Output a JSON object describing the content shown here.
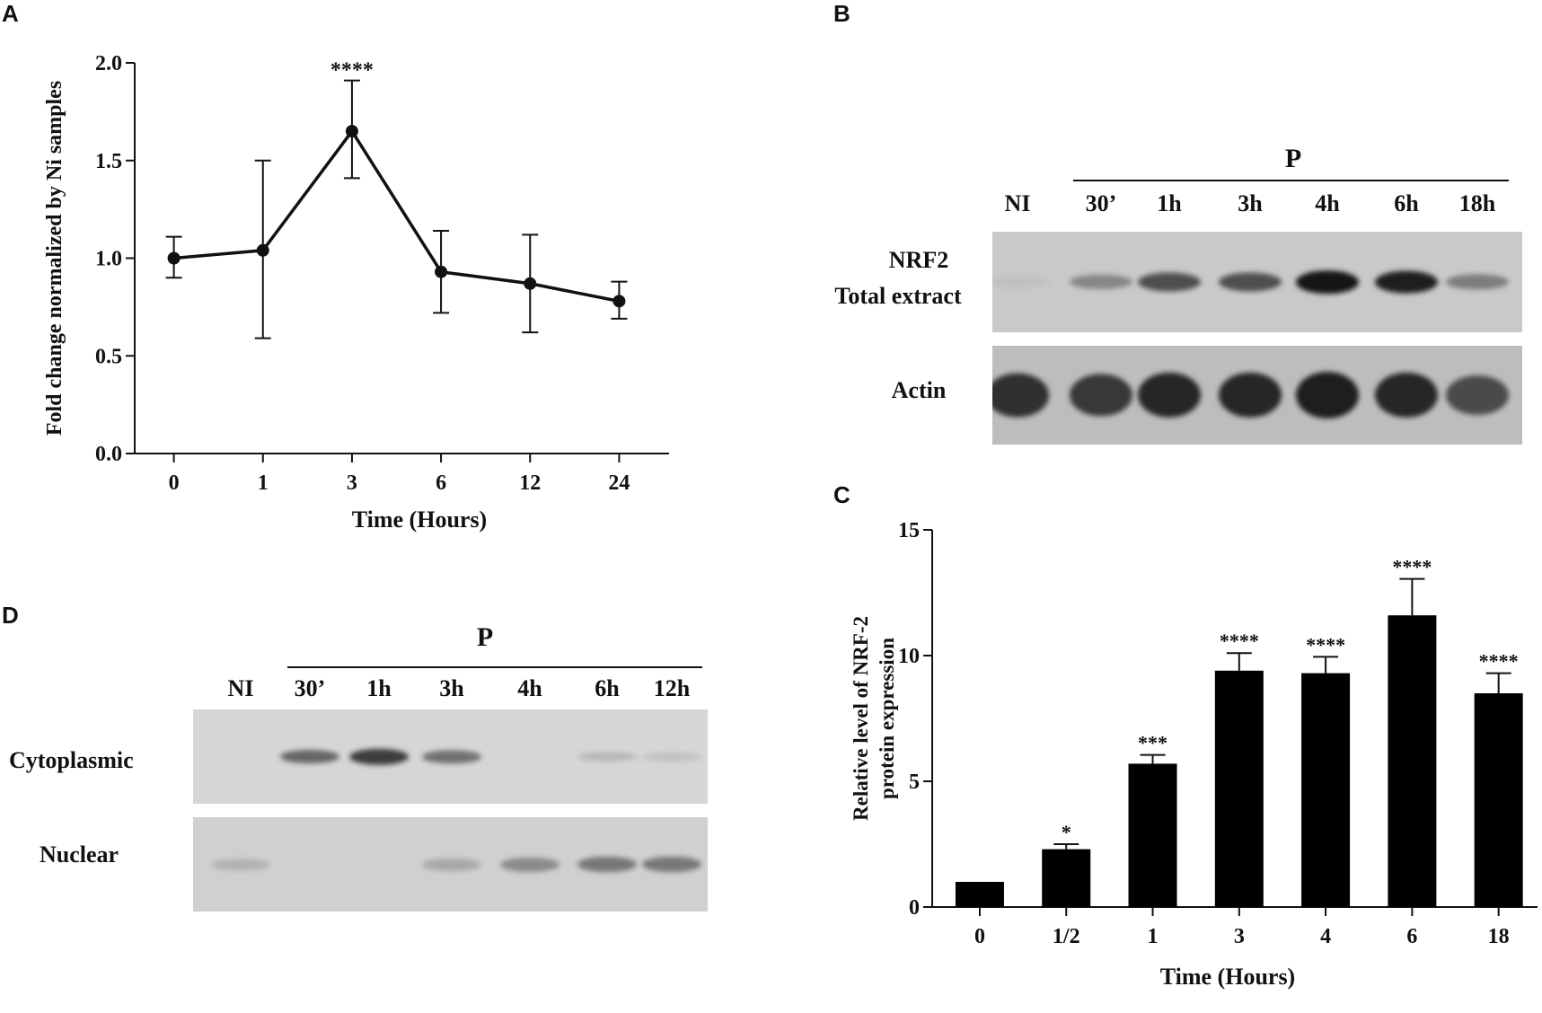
{
  "panels": {
    "a": "A",
    "b": "B",
    "c": "C",
    "d": "D"
  },
  "chart_data": [
    {
      "panel": "A",
      "type": "line",
      "categories": [
        "0",
        "1",
        "3",
        "6",
        "12",
        "24"
      ],
      "values": [
        1.0,
        1.04,
        1.65,
        0.93,
        0.87,
        0.78
      ],
      "error_upper": [
        0.11,
        0.46,
        0.26,
        0.21,
        0.25,
        0.1
      ],
      "error_lower": [
        0.1,
        0.45,
        0.24,
        0.21,
        0.25,
        0.09
      ],
      "annotations": [
        "",
        "",
        "****",
        "",
        "",
        ""
      ],
      "xlabel": "Time (Hours)",
      "ylabel": "Fold change normalized by Ni samples",
      "ylim": [
        0,
        2.0
      ],
      "yticks": [
        "0.0",
        "0.5",
        "1.0",
        "1.5",
        "2.0"
      ],
      "color": "#111111",
      "grid": false
    },
    {
      "panel": "C",
      "type": "bar",
      "categories": [
        "0",
        "1/2",
        "1",
        "3",
        "4",
        "6",
        "18"
      ],
      "values": [
        1.0,
        2.3,
        5.7,
        9.4,
        9.3,
        11.6,
        8.5
      ],
      "error_upper": [
        0.0,
        0.2,
        0.35,
        0.7,
        0.65,
        1.45,
        0.8
      ],
      "annotations": [
        "",
        "*",
        "***",
        "****",
        "****",
        "****",
        "****"
      ],
      "xlabel": "Time (Hours)",
      "ylabel": [
        "Relative level of NRF-2",
        "protein expression"
      ],
      "ylim": [
        0,
        15
      ],
      "yticks": [
        "0",
        "5",
        "10",
        "15"
      ],
      "color": "#000000",
      "grid": false
    }
  ],
  "blot_b": {
    "group_label": "P",
    "lanes": [
      "NI",
      "30’",
      "1h",
      "3h",
      "4h",
      "6h",
      "18h"
    ],
    "rows": [
      {
        "label_line1": "NRF2",
        "label_line2": "Total extract",
        "intensity": [
          0.05,
          0.35,
          0.65,
          0.65,
          0.95,
          0.9,
          0.4
        ]
      },
      {
        "label_line1": "Actin",
        "label_line2": "",
        "intensity": [
          0.8,
          0.75,
          0.85,
          0.85,
          0.9,
          0.85,
          0.65
        ]
      }
    ]
  },
  "blot_d": {
    "group_label": "P",
    "lanes": [
      "NI",
      "30’",
      "1h",
      "3h",
      "4h",
      "6h",
      "12h"
    ],
    "rows": [
      {
        "label": "Cytoplasmic",
        "intensity": [
          0.0,
          0.55,
          0.75,
          0.5,
          0.0,
          0.15,
          0.1
        ]
      },
      {
        "label": "Nuclear",
        "intensity": [
          0.15,
          0.0,
          0.0,
          0.2,
          0.35,
          0.45,
          0.45
        ]
      }
    ]
  }
}
